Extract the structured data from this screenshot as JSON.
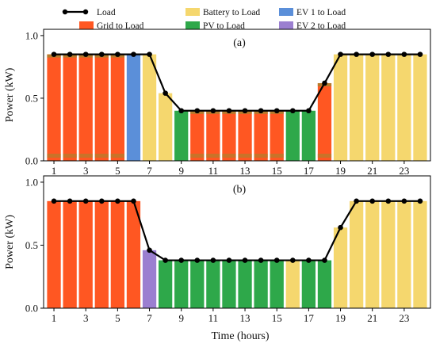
{
  "colors": {
    "grid": "#ff5722",
    "grid_strip": "#a5852e",
    "battery": "#f5d76e",
    "pv": "#2ea84a",
    "pv_dark": "#2e7d32",
    "ev1": "#5b8fd9",
    "ev2": "#9b7fd0",
    "load": "#000000"
  },
  "legend": {
    "load": "Load",
    "grid": "Grid to Load",
    "battery": "Battery to Load",
    "pv": "PV to Load",
    "ev1": "EV 1 to Load",
    "ev2": "EV 2 to Load"
  },
  "chart_data": [
    {
      "type": "bar",
      "panel_label": "(a)",
      "xlabel": "",
      "ylabel": "Power (kW)",
      "ylim": [
        0,
        1.05
      ],
      "yticks": [
        "0.0",
        "0.5",
        "1.0"
      ],
      "xticks": [
        1,
        3,
        5,
        7,
        9,
        11,
        13,
        15,
        17,
        19,
        21,
        23
      ],
      "hours": [
        1,
        2,
        3,
        4,
        5,
        6,
        7,
        8,
        9,
        10,
        11,
        12,
        13,
        14,
        15,
        16,
        17,
        18,
        19,
        20,
        21,
        22,
        23,
        24
      ],
      "load": [
        0.85,
        0.85,
        0.85,
        0.85,
        0.85,
        0.85,
        0.85,
        0.54,
        0.4,
        0.4,
        0.4,
        0.4,
        0.4,
        0.4,
        0.4,
        0.4,
        0.4,
        0.62,
        0.85,
        0.85,
        0.85,
        0.85,
        0.85,
        0.85
      ],
      "bars": [
        {
          "source": "grid",
          "value": 0.85
        },
        {
          "source": "grid",
          "value": 0.85
        },
        {
          "source": "grid",
          "value": 0.85
        },
        {
          "source": "grid",
          "value": 0.85
        },
        {
          "source": "grid",
          "value": 0.85
        },
        {
          "source": "ev1",
          "value": 0.85
        },
        {
          "source": "battery",
          "value": 0.85
        },
        {
          "source": "battery",
          "value": 0.54
        },
        {
          "source": "pv",
          "value": 0.4
        },
        {
          "source": "grid",
          "value": 0.4
        },
        {
          "source": "grid",
          "value": 0.4
        },
        {
          "source": "grid",
          "value": 0.4
        },
        {
          "source": "grid",
          "value": 0.4
        },
        {
          "source": "grid",
          "value": 0.4
        },
        {
          "source": "grid",
          "value": 0.4
        },
        {
          "source": "pv",
          "value": 0.4
        },
        {
          "source": "pv",
          "value": 0.4
        },
        {
          "source": "grid",
          "value": 0.62
        },
        {
          "source": "battery",
          "value": 0.85
        },
        {
          "source": "battery",
          "value": 0.85
        },
        {
          "source": "battery",
          "value": 0.85
        },
        {
          "source": "battery",
          "value": 0.85
        },
        {
          "source": "battery",
          "value": 0.85
        },
        {
          "source": "battery",
          "value": 0.85
        }
      ]
    },
    {
      "type": "bar",
      "panel_label": "(b)",
      "xlabel": "Time (hours)",
      "ylabel": "Power (kW)",
      "ylim": [
        0,
        1.05
      ],
      "yticks": [
        "0.0",
        "0.5",
        "1.0"
      ],
      "xticks": [
        1,
        3,
        5,
        7,
        9,
        11,
        13,
        15,
        17,
        19,
        21,
        23
      ],
      "hours": [
        1,
        2,
        3,
        4,
        5,
        6,
        7,
        8,
        9,
        10,
        11,
        12,
        13,
        14,
        15,
        16,
        17,
        18,
        19,
        20,
        21,
        22,
        23,
        24
      ],
      "load": [
        0.85,
        0.85,
        0.85,
        0.85,
        0.85,
        0.85,
        0.46,
        0.38,
        0.38,
        0.38,
        0.38,
        0.38,
        0.38,
        0.38,
        0.38,
        0.38,
        0.38,
        0.38,
        0.64,
        0.85,
        0.85,
        0.85,
        0.85,
        0.85
      ],
      "bars": [
        {
          "source": "grid",
          "value": 0.85
        },
        {
          "source": "grid",
          "value": 0.85
        },
        {
          "source": "grid",
          "value": 0.85
        },
        {
          "source": "grid",
          "value": 0.85
        },
        {
          "source": "grid",
          "value": 0.85
        },
        {
          "source": "grid",
          "value": 0.85
        },
        {
          "source": "ev2",
          "value": 0.46
        },
        {
          "source": "pv",
          "value": 0.38
        },
        {
          "source": "pv",
          "value": 0.38
        },
        {
          "source": "pv",
          "value": 0.38
        },
        {
          "source": "pv",
          "value": 0.38
        },
        {
          "source": "pv",
          "value": 0.38
        },
        {
          "source": "pv",
          "value": 0.38
        },
        {
          "source": "pv",
          "value": 0.38
        },
        {
          "source": "pv",
          "value": 0.38
        },
        {
          "source": "battery",
          "value": 0.38
        },
        {
          "source": "pv",
          "value": 0.38
        },
        {
          "source": "pv",
          "value": 0.38
        },
        {
          "source": "battery",
          "value": 0.64
        },
        {
          "source": "battery",
          "value": 0.85
        },
        {
          "source": "battery",
          "value": 0.85
        },
        {
          "source": "battery",
          "value": 0.85
        },
        {
          "source": "battery",
          "value": 0.85
        },
        {
          "source": "battery",
          "value": 0.85
        }
      ]
    }
  ]
}
